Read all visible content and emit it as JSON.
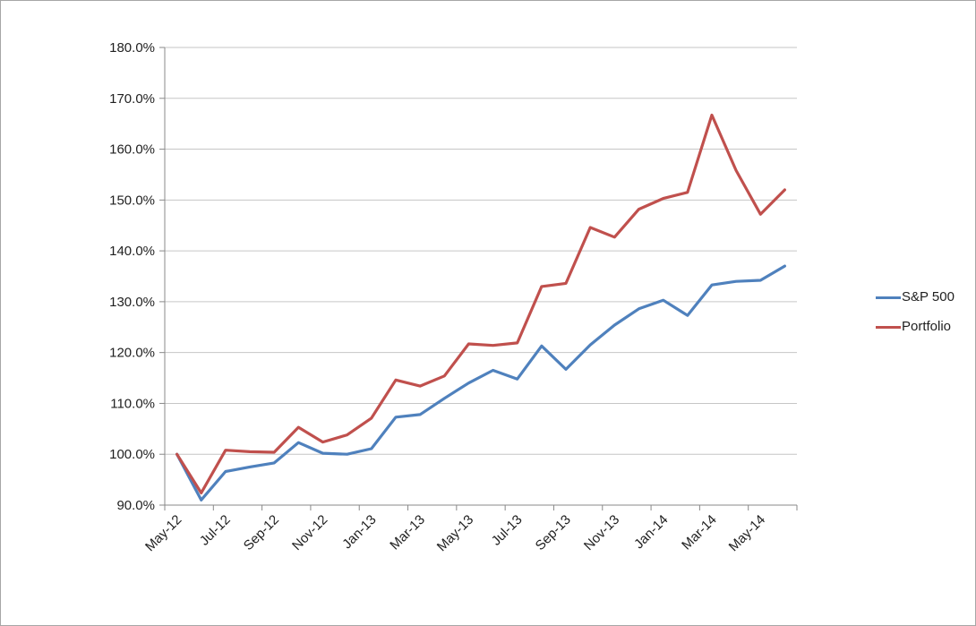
{
  "chart_data": {
    "type": "line",
    "x": [
      "May-12",
      "Jun-12",
      "Jul-12",
      "Aug-12",
      "Sep-12",
      "Oct-12",
      "Nov-12",
      "Dec-12",
      "Jan-13",
      "Feb-13",
      "Mar-13",
      "Apr-13",
      "May-13",
      "Jun-13",
      "Jul-13",
      "Aug-13",
      "Sep-13",
      "Oct-13",
      "Nov-13",
      "Dec-13",
      "Jan-14",
      "Feb-14",
      "Mar-14",
      "Apr-14",
      "May-14",
      "Jun-14"
    ],
    "x_tick_labels": [
      "May-12",
      "Jul-12",
      "Sep-12",
      "Nov-12",
      "Jan-13",
      "Mar-13",
      "May-13",
      "Jul-13",
      "Sep-13",
      "Nov-13",
      "Jan-14",
      "Mar-14",
      "May-14"
    ],
    "series": [
      {
        "name": "S&P 500",
        "color": "#4F81BD",
        "values": [
          100.0,
          91.0,
          96.6,
          97.5,
          98.3,
          102.3,
          100.2,
          100.0,
          101.1,
          107.3,
          107.8,
          111.0,
          114.0,
          116.5,
          114.8,
          121.3,
          116.7,
          121.5,
          125.4,
          128.6,
          130.3,
          127.3,
          133.3,
          134.0,
          134.2,
          137.0
        ]
      },
      {
        "name": "Portfolio",
        "color": "#C0504D",
        "values": [
          100.0,
          92.4,
          100.8,
          100.5,
          100.4,
          105.3,
          102.4,
          103.8,
          107.1,
          114.6,
          113.4,
          115.4,
          121.7,
          121.4,
          121.9,
          133.0,
          133.6,
          144.6,
          142.7,
          148.2,
          150.3,
          151.5,
          166.7,
          155.8,
          147.2,
          152.0
        ]
      }
    ],
    "title": "",
    "xlabel": "",
    "ylabel": "",
    "ylim": [
      90,
      180
    ],
    "ytick_step": 10,
    "ytick_labels": [
      "90.0%",
      "100.0%",
      "110.0%",
      "120.0%",
      "130.0%",
      "140.0%",
      "150.0%",
      "160.0%",
      "170.0%",
      "180.0%"
    ],
    "grid": "horizontal",
    "legend_position": "right",
    "colors": {
      "gridline": "#C6C6C6",
      "axis": "#898989",
      "text": "#1F1F1F",
      "background": "#FFFFFF"
    }
  }
}
